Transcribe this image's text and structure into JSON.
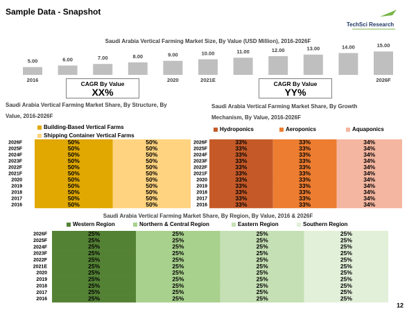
{
  "header": {
    "title": "Sample Data - Snapshot",
    "logo": "TechSci Research"
  },
  "cagr_boxes": [
    {
      "label": "CAGR By Value",
      "value": "XX%"
    },
    {
      "label": "CAGR By Value",
      "value": "YY%"
    }
  ],
  "page_number": "12",
  "chart_data": [
    {
      "type": "bar",
      "title": "Saudi Arabia Vertical Farming Market Size, By Value (USD Million), 2016-2026F",
      "categories": [
        "2016",
        null,
        null,
        null,
        "2020",
        "2021E",
        null,
        null,
        null,
        null,
        "2026F"
      ],
      "values": [
        5,
        6,
        7,
        8,
        9,
        10,
        11,
        12,
        13,
        14,
        15
      ],
      "value_labels": [
        "5.00",
        "6.00",
        "7.00",
        "8.00",
        "9.00",
        "10.00",
        "11.00",
        "12.00",
        "13.00",
        "14.00",
        "15.00"
      ],
      "color": "#bfbfbf",
      "ylim": [
        0,
        16
      ]
    },
    {
      "type": "hbar_stacked",
      "title": "Saudi Arabia Vertical Farming Market Share, By Structure, By Value, 2016-2026F",
      "categories": [
        "2026F",
        "2025F",
        "2024F",
        "2023F",
        "2022F",
        "2021F",
        "2020",
        "2019",
        "2018",
        "2017",
        "2016"
      ],
      "xlim": [
        0,
        100
      ],
      "series": [
        {
          "name": "Building-Based Vertical Farms",
          "color": "#e0a800",
          "values": [
            50,
            50,
            50,
            50,
            50,
            50,
            50,
            50,
            50,
            50,
            50
          ],
          "value_labels": [
            "50%",
            "50%",
            "50%",
            "50%",
            "50%",
            "50%",
            "50%",
            "50%",
            "50%",
            "50%",
            "50%"
          ]
        },
        {
          "name": "Shipping Container Vertical Farms",
          "color": "#ffd37f",
          "values": [
            50,
            50,
            50,
            50,
            50,
            50,
            50,
            50,
            50,
            50,
            50
          ],
          "value_labels": [
            "50%",
            "50%",
            "50%",
            "50%",
            "50%",
            "50%",
            "50%",
            "50%",
            "50%",
            "50%",
            "50%"
          ]
        }
      ]
    },
    {
      "type": "hbar_stacked",
      "title": "Saudi Arabia Vertical Farming Market Share, By Growth Mechanism, By Value, 2016-2026F",
      "categories": [
        "2026F",
        "2025F",
        "2024F",
        "2023F",
        "2022F",
        "2021F",
        "2020",
        "2019",
        "2018",
        "2017",
        "2016"
      ],
      "xlim": [
        0,
        100
      ],
      "series": [
        {
          "name": "Hydroponics",
          "color": "#c55a28",
          "values": [
            33,
            33,
            33,
            33,
            33,
            33,
            33,
            33,
            33,
            33,
            33
          ],
          "value_labels": [
            "33%",
            "33%",
            "33%",
            "33%",
            "33%",
            "33%",
            "33%",
            "33%",
            "33%",
            "33%",
            "33%"
          ]
        },
        {
          "name": "Aeroponics",
          "color": "#ed7d31",
          "values": [
            33,
            33,
            33,
            33,
            33,
            33,
            33,
            33,
            33,
            33,
            33
          ],
          "value_labels": [
            "33%",
            "33%",
            "33%",
            "33%",
            "33%",
            "33%",
            "33%",
            "33%",
            "33%",
            "33%",
            "33%"
          ]
        },
        {
          "name": "Aquaponics",
          "color": "#f4b6a0",
          "values": [
            34,
            34,
            34,
            34,
            34,
            34,
            34,
            34,
            34,
            34,
            34
          ],
          "value_labels": [
            "34%",
            "34%",
            "34%",
            "34%",
            "34%",
            "34%",
            "34%",
            "34%",
            "34%",
            "34%",
            "34%"
          ]
        }
      ]
    },
    {
      "type": "hbar_stacked",
      "title": "Saudi Arabia Vertical Farming Market Share, By Region, By Value, 2016 & 2026F",
      "categories": [
        "2026F",
        "2025F",
        "2024F",
        "2023F",
        "2022F",
        "2021E",
        "2020",
        "2019",
        "2018",
        "2017",
        "2016"
      ],
      "xlim": [
        0,
        100
      ],
      "series": [
        {
          "name": "Western Region",
          "color": "#548235",
          "values": [
            25,
            25,
            25,
            25,
            25,
            25,
            25,
            25,
            25,
            25,
            25
          ],
          "value_labels": [
            "25%",
            "25%",
            "25%",
            "25%",
            "25%",
            "25%",
            "25%",
            "25%",
            "25%",
            "25%",
            "25%"
          ]
        },
        {
          "name": "Northern & Central Region",
          "color": "#a9d18e",
          "values": [
            25,
            25,
            25,
            25,
            25,
            25,
            25,
            25,
            25,
            25,
            25
          ],
          "value_labels": [
            "25%",
            "25%",
            "25%",
            "25%",
            "25%",
            "25%",
            "25%",
            "25%",
            "25%",
            "25%",
            "25%"
          ]
        },
        {
          "name": "Eastern Region",
          "color": "#c5e0b4",
          "values": [
            25,
            25,
            25,
            25,
            25,
            25,
            25,
            25,
            25,
            25,
            25
          ],
          "value_labels": [
            "25%",
            "25%",
            "25%",
            "25%",
            "25%",
            "25%",
            "25%",
            "25%",
            "25%",
            "25%",
            "25%"
          ]
        },
        {
          "name": "Southern Region",
          "color": "#e2f0d9",
          "values": [
            25,
            25,
            25,
            25,
            25,
            25,
            25,
            25,
            25,
            25,
            25
          ],
          "value_labels": [
            "25%",
            "25%",
            "25%",
            "25%",
            "25%",
            "25%",
            "25%",
            "25%",
            "25%",
            "25%",
            "25%"
          ]
        }
      ]
    }
  ]
}
